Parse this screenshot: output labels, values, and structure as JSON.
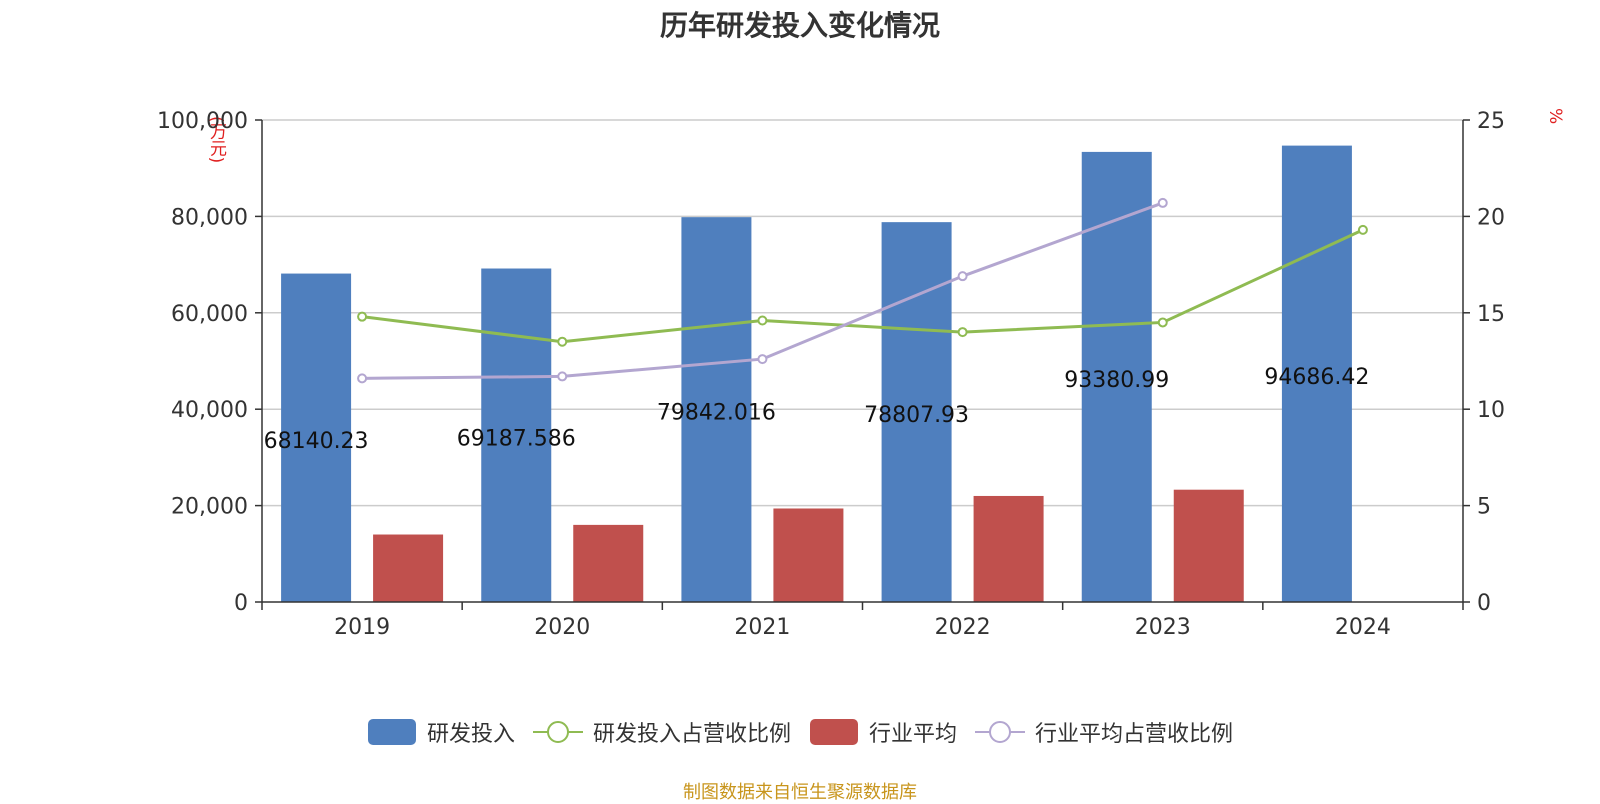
{
  "title": "历年研发投入变化情况",
  "source": "制图数据来自恒生聚源数据库",
  "left_unit": "(万元)",
  "right_unit": "%",
  "legend": [
    {
      "name": "研发投入",
      "kind": "bar",
      "color": "#4f7fbe"
    },
    {
      "name": "研发投入占营收比例",
      "kind": "line",
      "color": "#8fbb52"
    },
    {
      "name": "行业平均",
      "kind": "bar",
      "color": "#c0504d"
    },
    {
      "name": "行业平均占营收比例",
      "kind": "line",
      "color": "#b3a6d0"
    }
  ],
  "chart_data": {
    "type": "bar",
    "title": "历年研发投入变化情况",
    "categories": [
      "2019",
      "2020",
      "2021",
      "2022",
      "2023",
      "2024"
    ],
    "y_left": {
      "min": 0,
      "max": 100000,
      "ticks": [
        0,
        20000,
        40000,
        60000,
        80000,
        100000
      ],
      "tick_labels": [
        "0",
        "20,000",
        "40,000",
        "60,000",
        "80,000",
        "100,000"
      ]
    },
    "y_right": {
      "min": 0,
      "max": 25,
      "ticks": [
        0,
        5,
        10,
        15,
        20,
        25
      ],
      "tick_labels": [
        "0",
        "5",
        "10",
        "15",
        "20",
        "25"
      ]
    },
    "series": [
      {
        "name": "研发投入",
        "type": "bar",
        "axis": "left",
        "color": "#4f7fbe",
        "values": [
          68140.23,
          69187.586,
          79842.016,
          78807.93,
          93380.99,
          94686.42
        ],
        "labels": [
          "68140.23",
          "69187.586",
          "79842.016",
          "78807.93",
          "93380.99",
          "94686.42"
        ]
      },
      {
        "name": "行业平均",
        "type": "bar",
        "axis": "left",
        "color": "#c0504d",
        "values": [
          14000,
          16000,
          19400,
          22000,
          23300,
          null
        ]
      },
      {
        "name": "研发投入占营收比例",
        "type": "line",
        "axis": "right",
        "color": "#8fbb52",
        "values": [
          14.8,
          13.5,
          14.6,
          14.0,
          14.5,
          19.3
        ]
      },
      {
        "name": "行业平均占营收比例",
        "type": "line",
        "axis": "right",
        "color": "#b3a6d0",
        "values": [
          11.6,
          11.7,
          12.6,
          16.9,
          20.7,
          null
        ]
      }
    ]
  }
}
